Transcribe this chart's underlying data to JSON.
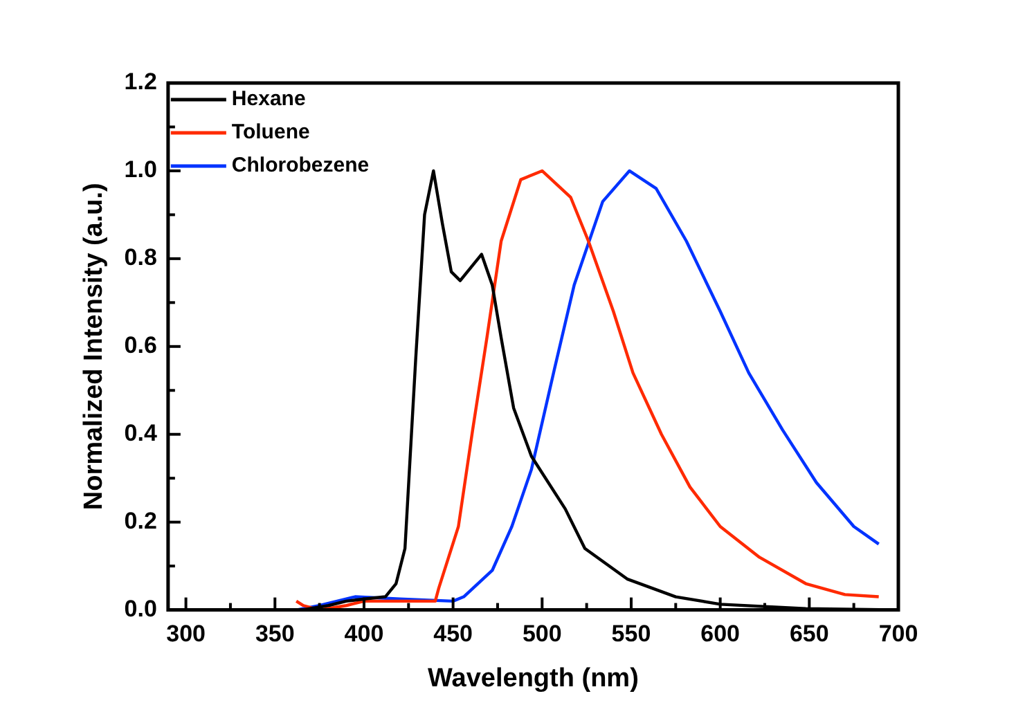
{
  "chart_data": {
    "type": "line",
    "xlabel": "Wavelength (nm)",
    "ylabel": "Normalized Intensity (a.u.)",
    "xlim": [
      290,
      700
    ],
    "ylim": [
      0,
      1.2
    ],
    "xticks": [
      300,
      {
        "value": 325,
        "label": null
      },
      350,
      {
        "value": 375,
        "label": null
      },
      400,
      {
        "value": 425,
        "label": null
      },
      450,
      {
        "value": 475,
        "label": null
      },
      500,
      {
        "value": 525,
        "label": null
      },
      550,
      {
        "value": 575,
        "label": null
      },
      600,
      {
        "value": 625,
        "label": null
      },
      650,
      {
        "value": 675,
        "label": null
      },
      700
    ],
    "yticks": [
      {
        "value": 0,
        "label": "0.0"
      },
      {
        "value": 0.1,
        "label": null
      },
      0.2,
      {
        "value": 0.3,
        "label": null
      },
      0.4,
      {
        "value": 0.5,
        "label": null
      },
      0.6,
      {
        "value": 0.7,
        "label": null
      },
      0.8,
      {
        "value": 0.9,
        "label": null
      },
      {
        "value": 1,
        "label": "1.0"
      },
      {
        "value": 1.1,
        "label": null
      },
      1.2
    ],
    "grid": false,
    "legend": "top left",
    "marker": "none",
    "line_style": "solid",
    "series": [
      {
        "name": "Hexane",
        "color": "#000000",
        "x": [
          365,
          380,
          390,
          400,
          412,
          418,
          423,
          429,
          434,
          439,
          444,
          449,
          454,
          460,
          466,
          472,
          477,
          484,
          494,
          513,
          524,
          548,
          575,
          600,
          648,
          700
        ],
        "values": [
          0,
          0.01,
          0.02,
          0.025,
          0.03,
          0.06,
          0.14,
          0.57,
          0.9,
          1.0,
          0.88,
          0.77,
          0.75,
          0.78,
          0.81,
          0.74,
          0.62,
          0.46,
          0.35,
          0.23,
          0.14,
          0.07,
          0.03,
          0.013,
          0.003,
          0
        ]
      },
      {
        "name": "Toluene",
        "color": "#ff2a00",
        "x": [
          362,
          366,
          375,
          390,
          400,
          420,
          440,
          442,
          453,
          461,
          469,
          477,
          488,
          500,
          516,
          526,
          540,
          551,
          567,
          583,
          600,
          622,
          648,
          670,
          689
        ],
        "values": [
          0.02,
          0.01,
          0.0,
          0.01,
          0.02,
          0.02,
          0.02,
          0.05,
          0.19,
          0.41,
          0.62,
          0.84,
          0.98,
          1.0,
          0.94,
          0.84,
          0.68,
          0.54,
          0.4,
          0.28,
          0.19,
          0.12,
          0.06,
          0.035,
          0.03
        ]
      },
      {
        "name": "Chlorobezene",
        "color": "#0033ff",
        "x": [
          362,
          375,
          395,
          420,
          450,
          456,
          472,
          483,
          494,
          507,
          518,
          534,
          549,
          564,
          581,
          600,
          616,
          635,
          654,
          675,
          689
        ],
        "values": [
          0,
          0.01,
          0.03,
          0.025,
          0.02,
          0.03,
          0.09,
          0.19,
          0.32,
          0.55,
          0.74,
          0.93,
          1.0,
          0.96,
          0.84,
          0.68,
          0.54,
          0.41,
          0.29,
          0.19,
          0.15
        ]
      }
    ]
  }
}
